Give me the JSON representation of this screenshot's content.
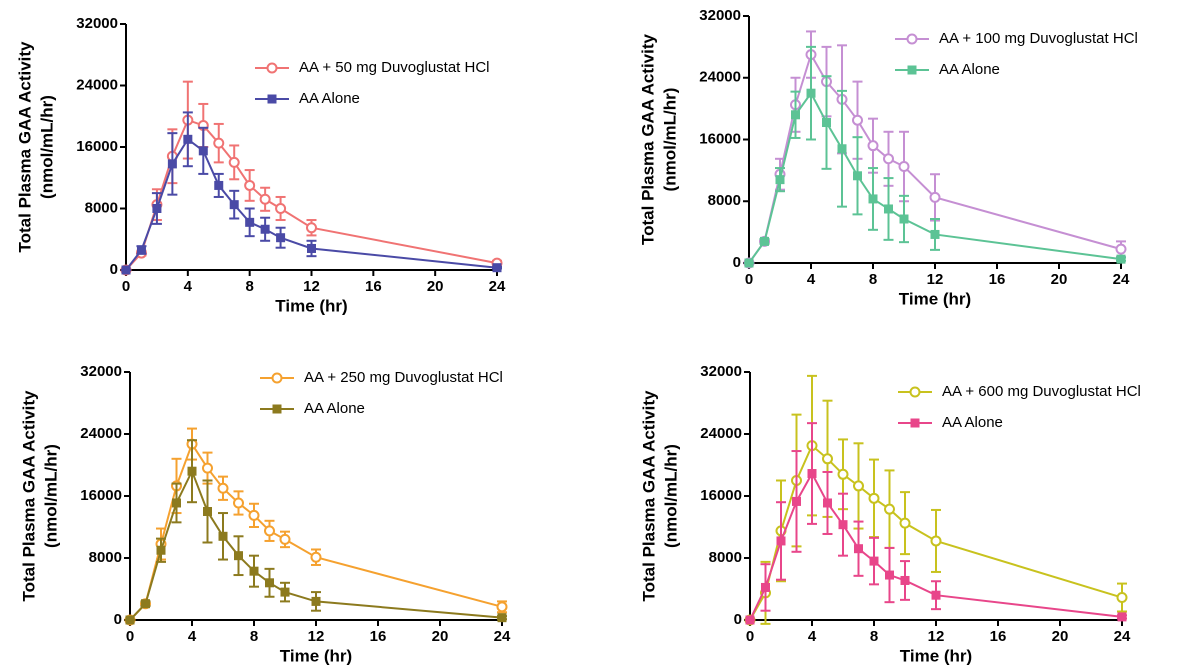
{
  "chart_data": [
    {
      "type": "line",
      "xlabel": "Time (hr)",
      "ylabel": "Total Plasma GAA Activity",
      "ylabel_unit": "(nmol/mL/hr)",
      "x": [
        0,
        1,
        2,
        3,
        4,
        5,
        6,
        7,
        8,
        9,
        10,
        12,
        24
      ],
      "xlim": [
        0,
        24
      ],
      "xticks": [
        0,
        4,
        8,
        12,
        16,
        20,
        24
      ],
      "ylim": [
        0,
        32000
      ],
      "yticks": [
        0,
        8000,
        16000,
        24000,
        32000
      ],
      "series": [
        {
          "name": "AA + 50 mg Duvoglustat HCl",
          "color": "#f07373",
          "marker": "circle-open",
          "values": [
            0,
            2200,
            8500,
            14800,
            19500,
            18800,
            16500,
            14000,
            11000,
            9200,
            8000,
            5500,
            900
          ],
          "errors": [
            0,
            300,
            2000,
            3500,
            5000,
            2800,
            2500,
            2200,
            2000,
            1500,
            1500,
            1000,
            300
          ]
        },
        {
          "name": "AA Alone",
          "color": "#4a4aa6",
          "marker": "square",
          "values": [
            0,
            2600,
            8000,
            13800,
            17000,
            15500,
            11000,
            8500,
            6200,
            5300,
            4200,
            2800,
            300
          ],
          "errors": [
            0,
            500,
            2000,
            4000,
            3500,
            3000,
            1500,
            1800,
            1800,
            1500,
            1300,
            1000,
            100
          ]
        }
      ]
    },
    {
      "type": "line",
      "xlabel": "Time (hr)",
      "ylabel": "Total Plasma GAA Activity",
      "ylabel_unit": "(nmol/mL/hr)",
      "x": [
        0,
        1,
        2,
        3,
        4,
        5,
        6,
        7,
        8,
        9,
        10,
        12,
        24
      ],
      "xlim": [
        0,
        24
      ],
      "xticks": [
        0,
        4,
        8,
        12,
        16,
        20,
        24
      ],
      "ylim": [
        0,
        32000
      ],
      "yticks": [
        0,
        8000,
        16000,
        24000,
        32000
      ],
      "series": [
        {
          "name": "AA + 100 mg Duvoglustat HCl",
          "color": "#c58fd3",
          "marker": "circle-open",
          "values": [
            0,
            2800,
            11500,
            20500,
            27000,
            23500,
            21200,
            18500,
            15200,
            13500,
            12500,
            8500,
            1800
          ],
          "errors": [
            0,
            300,
            2000,
            3500,
            3000,
            4500,
            7000,
            5000,
            3500,
            3500,
            4500,
            3000,
            1000
          ]
        },
        {
          "name": "AA Alone",
          "color": "#5cc395",
          "marker": "square",
          "values": [
            0,
            2800,
            10800,
            19200,
            22000,
            18200,
            14800,
            11300,
            8300,
            7000,
            5700,
            3700,
            500
          ],
          "errors": [
            0,
            300,
            1500,
            3000,
            6000,
            6000,
            7500,
            5000,
            4000,
            4000,
            3000,
            2000,
            200
          ]
        }
      ]
    },
    {
      "type": "line",
      "xlabel": "Time (hr)",
      "ylabel": "Total Plasma GAA Activity",
      "ylabel_unit": "(nmol/mL/hr)",
      "x": [
        0,
        1,
        2,
        3,
        4,
        5,
        6,
        7,
        8,
        9,
        10,
        12,
        24
      ],
      "xlim": [
        0,
        24
      ],
      "xticks": [
        0,
        4,
        8,
        12,
        16,
        20,
        24
      ],
      "ylim": [
        0,
        32000
      ],
      "yticks": [
        0,
        8000,
        16000,
        24000,
        32000
      ],
      "series": [
        {
          "name": "AA + 250 mg Duvoglustat HCl",
          "color": "#f5a12f",
          "marker": "circle-open",
          "values": [
            0,
            2100,
            9800,
            17300,
            22700,
            19600,
            17000,
            15100,
            13500,
            11500,
            10400,
            8100,
            1700
          ],
          "errors": [
            0,
            300,
            2000,
            3500,
            2000,
            2000,
            1500,
            1500,
            1500,
            1300,
            1000,
            1000,
            700
          ]
        },
        {
          "name": "AA Alone",
          "color": "#8c7a1e",
          "marker": "square",
          "values": [
            0,
            2100,
            9000,
            15100,
            19200,
            14000,
            10800,
            8300,
            6300,
            4800,
            3600,
            2400,
            300
          ],
          "errors": [
            0,
            300,
            1500,
            2500,
            4000,
            4000,
            3000,
            2500,
            2000,
            1800,
            1200,
            1200,
            200
          ]
        }
      ]
    },
    {
      "type": "line",
      "xlabel": "Time (hr)",
      "ylabel": "Total Plasma GAA Activity",
      "ylabel_unit": "(nmol/mL/hr)",
      "x": [
        0,
        1,
        2,
        3,
        4,
        5,
        6,
        7,
        8,
        9,
        10,
        12,
        24
      ],
      "xlim": [
        0,
        24
      ],
      "xticks": [
        0,
        4,
        8,
        12,
        16,
        20,
        24
      ],
      "ylim": [
        0,
        32000
      ],
      "yticks": [
        0,
        8000,
        16000,
        24000,
        32000
      ],
      "series": [
        {
          "name": "AA + 600 mg Duvoglustat HCl",
          "color": "#c8c21e",
          "marker": "circle-open",
          "values": [
            0,
            3500,
            11500,
            18000,
            22500,
            20800,
            18800,
            17300,
            15700,
            14300,
            12500,
            10200,
            2900
          ],
          "errors": [
            0,
            4000,
            6500,
            8500,
            9000,
            7500,
            4500,
            5500,
            5000,
            5000,
            4000,
            4000,
            1800
          ]
        },
        {
          "name": "AA Alone",
          "color": "#e8468a",
          "marker": "square",
          "values": [
            0,
            4200,
            10200,
            15300,
            18900,
            15100,
            12300,
            9200,
            7600,
            5800,
            5100,
            3200,
            400
          ],
          "errors": [
            0,
            3000,
            5000,
            6500,
            6500,
            4000,
            4000,
            3500,
            3000,
            3500,
            2500,
            1800,
            200
          ]
        }
      ]
    }
  ]
}
